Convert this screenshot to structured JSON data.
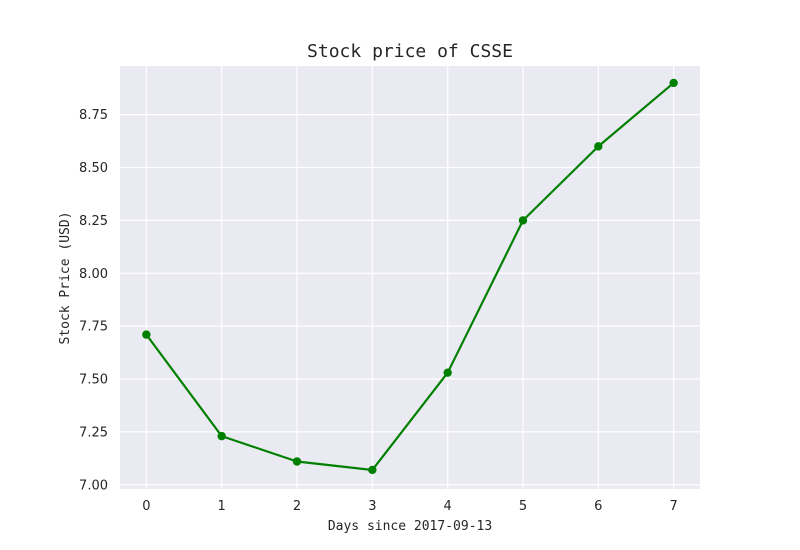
{
  "chart_data": {
    "type": "line",
    "title": "Stock price of CSSE",
    "xlabel": "Days since 2017-09-13",
    "ylabel": "Stock Price (USD)",
    "x": [
      0,
      1,
      2,
      3,
      4,
      5,
      6,
      7
    ],
    "series": [
      {
        "values": [
          7.71,
          7.23,
          7.11,
          7.07,
          7.53,
          8.25,
          8.6,
          8.9
        ]
      }
    ],
    "xlim": [
      -0.35,
      7.35
    ],
    "ylim": [
      6.98,
      8.98
    ],
    "xticks": [
      "0",
      "1",
      "2",
      "3",
      "4",
      "5",
      "6",
      "7"
    ],
    "yticks": [
      "7.00",
      "7.25",
      "7.50",
      "7.75",
      "8.00",
      "8.25",
      "8.50",
      "8.75"
    ],
    "grid": true,
    "colors": {
      "line": "#008000",
      "background": "#eaeaf2",
      "grid": "#ffffff"
    }
  }
}
